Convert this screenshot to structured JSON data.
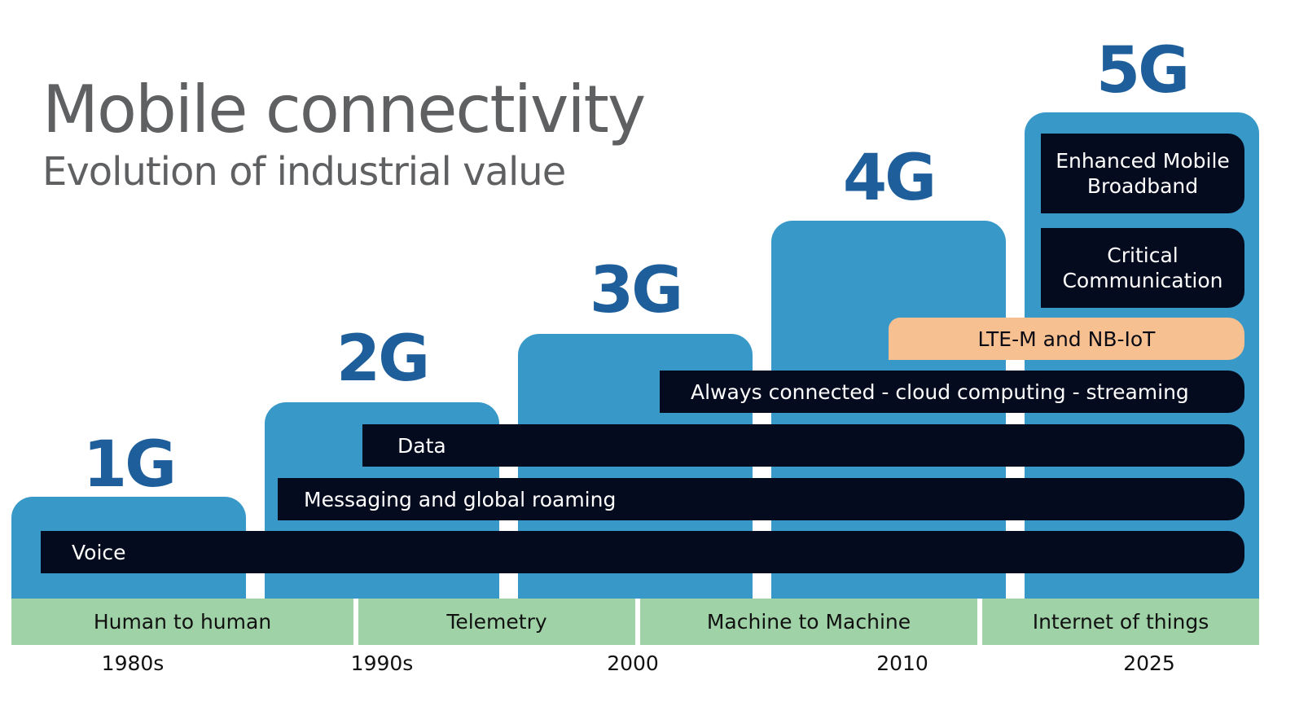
{
  "header": {
    "title": "Mobile connectivity",
    "subtitle": "Evolution of industrial value"
  },
  "generations": [
    "1G",
    "2G",
    "3G",
    "4G",
    "5G"
  ],
  "capabilities": {
    "voice": "Voice",
    "messaging": "Messaging and global roaming",
    "data": "Data",
    "always_connected": "Always connected - cloud computing - streaming",
    "lte_m": "LTE-M and NB-IoT",
    "critical": "Critical Communication",
    "embb": "Enhanced Mobile Broadband"
  },
  "eras": [
    "Human to human",
    "Telemetry",
    "Machine to Machine",
    "Internet of things"
  ],
  "years": [
    "1980s",
    "1990s",
    "2000",
    "2010",
    "2025"
  ],
  "colors": {
    "step_blue": "#3898c8",
    "gen_label": "#1e5f9b",
    "bar_dark": "#050b1e",
    "lte_orange": "#f6c091",
    "era_green": "#9fd2a6",
    "title_gray": "#5f6062"
  }
}
